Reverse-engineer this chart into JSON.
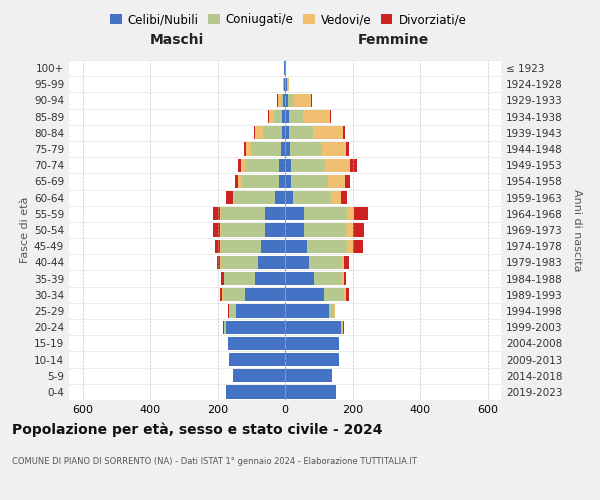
{
  "age_groups": [
    "0-4",
    "5-9",
    "10-14",
    "15-19",
    "20-24",
    "25-29",
    "30-34",
    "35-39",
    "40-44",
    "45-49",
    "50-54",
    "55-59",
    "60-64",
    "65-69",
    "70-74",
    "75-79",
    "80-84",
    "85-89",
    "90-94",
    "95-99",
    "100+"
  ],
  "birth_years": [
    "2019-2023",
    "2014-2018",
    "2009-2013",
    "2004-2008",
    "1999-2003",
    "1994-1998",
    "1989-1993",
    "1984-1988",
    "1979-1983",
    "1974-1978",
    "1969-1973",
    "1964-1968",
    "1959-1963",
    "1954-1958",
    "1949-1953",
    "1944-1948",
    "1939-1943",
    "1934-1938",
    "1929-1933",
    "1924-1928",
    "≤ 1923"
  ],
  "maschi": {
    "celibi": [
      175,
      155,
      165,
      170,
      175,
      145,
      120,
      90,
      80,
      70,
      60,
      60,
      30,
      18,
      18,
      12,
      10,
      8,
      5,
      3,
      2
    ],
    "coniugati": [
      0,
      0,
      0,
      0,
      5,
      20,
      65,
      90,
      110,
      120,
      130,
      130,
      120,
      110,
      100,
      90,
      55,
      25,
      8,
      2,
      0
    ],
    "vedovi": [
      0,
      0,
      0,
      0,
      2,
      2,
      2,
      2,
      2,
      2,
      2,
      2,
      5,
      10,
      12,
      15,
      25,
      15,
      8,
      2,
      0
    ],
    "divorziati": [
      0,
      0,
      0,
      0,
      2,
      2,
      5,
      8,
      10,
      15,
      20,
      20,
      20,
      10,
      10,
      5,
      3,
      3,
      2,
      0,
      0
    ]
  },
  "femmine": {
    "nubili": [
      150,
      140,
      160,
      160,
      165,
      130,
      115,
      85,
      70,
      65,
      55,
      55,
      25,
      18,
      18,
      15,
      12,
      12,
      8,
      5,
      2
    ],
    "coniugate": [
      0,
      0,
      0,
      0,
      5,
      15,
      60,
      85,
      100,
      120,
      125,
      130,
      110,
      110,
      100,
      95,
      70,
      40,
      20,
      3,
      0
    ],
    "vedove": [
      0,
      0,
      0,
      0,
      2,
      2,
      5,
      5,
      5,
      15,
      20,
      20,
      30,
      50,
      75,
      70,
      90,
      80,
      50,
      5,
      0
    ],
    "divorziate": [
      0,
      0,
      0,
      0,
      2,
      2,
      10,
      5,
      15,
      30,
      35,
      40,
      20,
      15,
      20,
      10,
      5,
      5,
      3,
      0,
      0
    ]
  },
  "colors": {
    "celibi": "#4472c4",
    "coniugati": "#b5c98e",
    "vedovi": "#f0c070",
    "divorziati": "#cc2222"
  },
  "title": "Popolazione per età, sesso e stato civile - 2024",
  "subtitle": "COMUNE DI PIANO DI SORRENTO (NA) - Dati ISTAT 1° gennaio 2024 - Elaborazione TUTTITALIA.IT",
  "maschi_label": "Maschi",
  "femmine_label": "Femmine",
  "ylabel_left": "Fasce di età",
  "ylabel_right": "Anni di nascita",
  "xlim": 640,
  "bg_color": "#f0f0f0",
  "plot_bg": "#ffffff"
}
